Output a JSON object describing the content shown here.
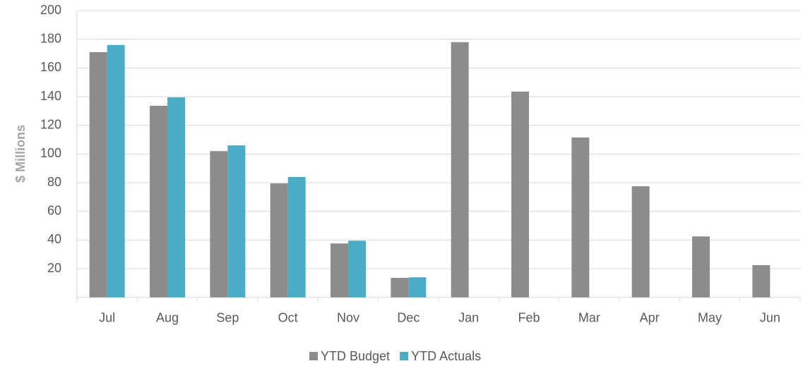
{
  "chart_data": {
    "type": "bar",
    "categories": [
      "Jul",
      "Aug",
      "Sep",
      "Oct",
      "Nov",
      "Dec",
      "Jan",
      "Feb",
      "Mar",
      "Apr",
      "May",
      "Jun"
    ],
    "series": [
      {
        "name": "YTD Budget",
        "color": "#8c8c8c",
        "values": [
          171,
          133.6,
          102,
          79.5,
          37.6,
          13.6,
          178,
          143.5,
          111.5,
          77.5,
          42.5,
          22.5
        ]
      },
      {
        "name": "YTD Actuals",
        "color": "#4bacc6",
        "values": [
          176,
          139.5,
          106,
          84,
          39.5,
          14,
          null,
          null,
          null,
          null,
          null,
          null
        ]
      }
    ],
    "ylabel": "$ Millions",
    "ylim": [
      0,
      200
    ],
    "yticks": [
      20,
      40,
      60,
      80,
      100,
      120,
      140,
      160,
      180,
      200
    ],
    "grid": true,
    "legend": "bottom"
  }
}
